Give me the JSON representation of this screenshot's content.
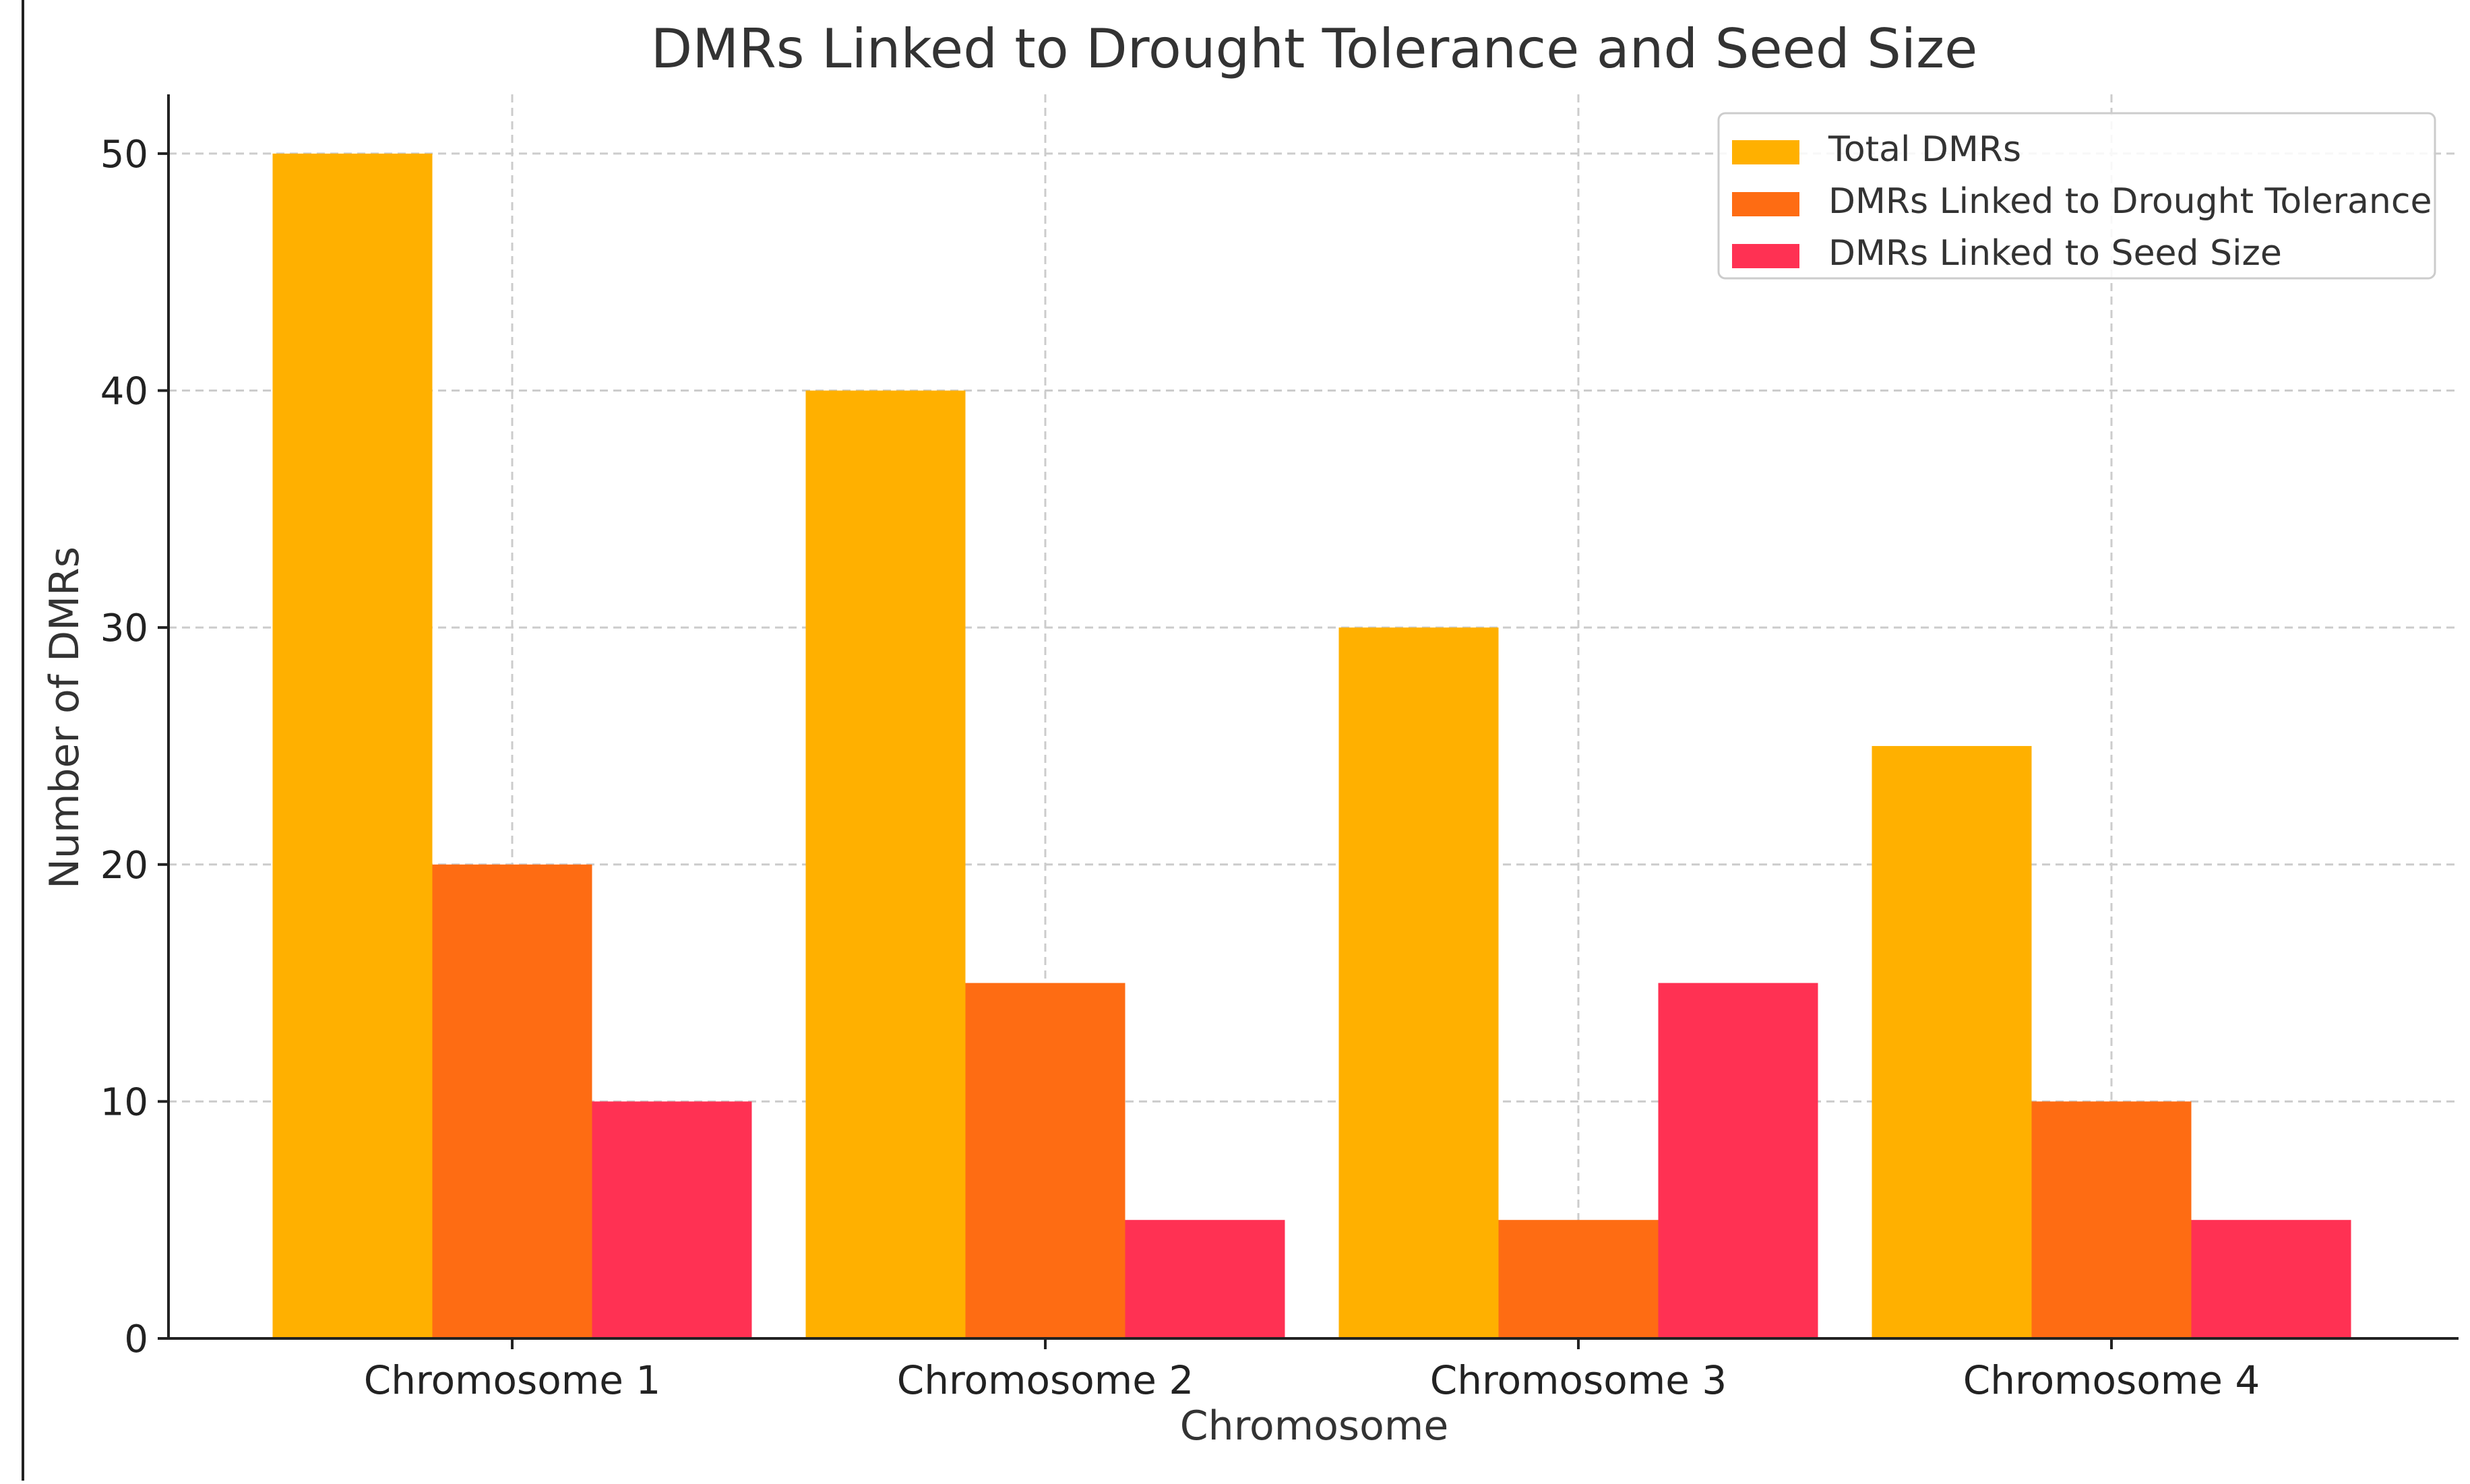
{
  "chart_data": {
    "type": "bar",
    "title": "DMRs Linked to Drought Tolerance and Seed Size",
    "xlabel": "Chromosome",
    "ylabel": "Number of DMRs",
    "categories": [
      "Chromosome 1",
      "Chromosome 2",
      "Chromosome 3",
      "Chromosome 4"
    ],
    "series": [
      {
        "name": "Total DMRs",
        "values": [
          50,
          40,
          30,
          25
        ],
        "color": "#FFB000"
      },
      {
        "name": "DMRs Linked to Drought Tolerance",
        "values": [
          20,
          15,
          5,
          10
        ],
        "color": "#FE6C13"
      },
      {
        "name": "DMRs Linked to Seed Size",
        "values": [
          10,
          5,
          15,
          5
        ],
        "color": "#FF3153"
      }
    ],
    "ylim": [
      0,
      52.5
    ],
    "yticks": [
      0,
      10,
      20,
      30,
      40,
      50
    ],
    "grid": true,
    "legend_position": "top-right"
  }
}
